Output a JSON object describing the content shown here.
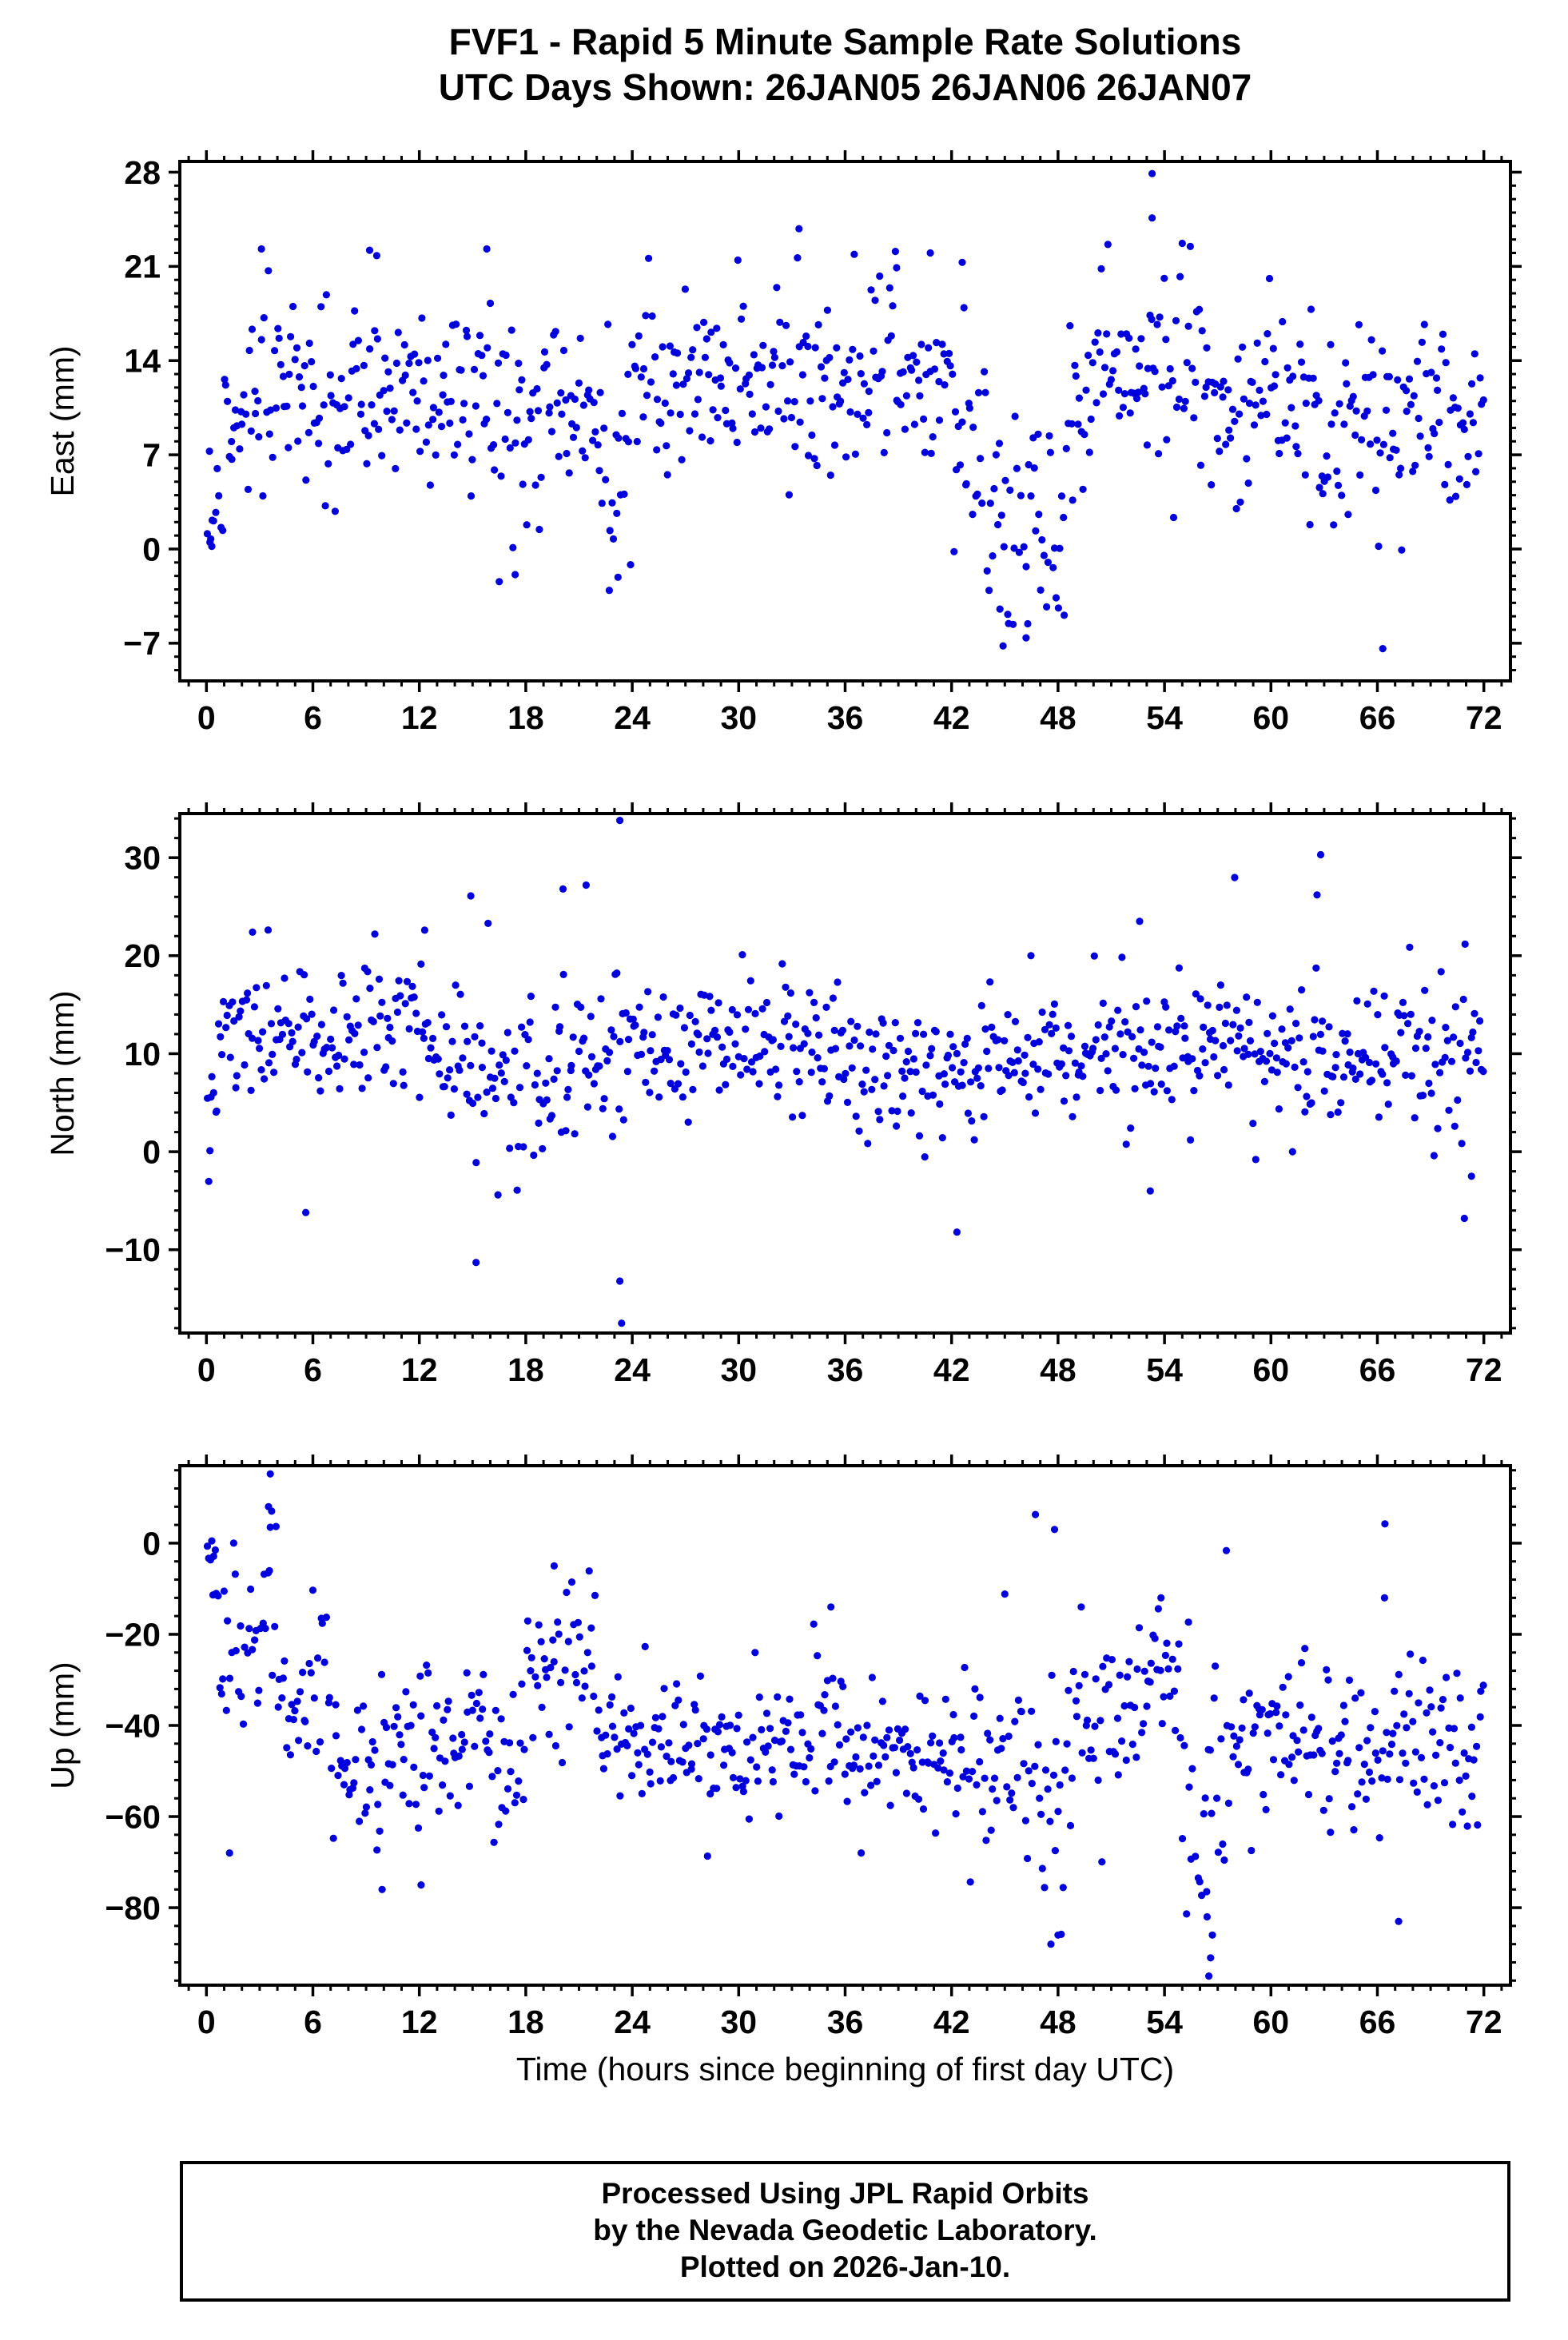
{
  "page": {
    "title_line1": "FVF1 - Rapid 5 Minute Sample Rate Solutions",
    "title_line2": "UTC Days Shown:  26JAN05 26JAN06 26JAN07"
  },
  "style": {
    "point_color": "#0000dd",
    "axis_color": "#000000"
  },
  "footer": {
    "lines": [
      "Processed Using JPL Rapid Orbits",
      "by the Nevada Geodetic Laboratory.",
      "Plotted on 2026-Jan-10."
    ]
  },
  "chart_data": [
    {
      "type": "scatter",
      "title": "",
      "ylabel": "East (mm)",
      "xlabel": "",
      "xlim": [
        -1.5,
        73.5
      ],
      "ylim": [
        -9.8,
        28.8
      ],
      "xticks": [
        0,
        6,
        12,
        18,
        24,
        30,
        36,
        42,
        48,
        54,
        60,
        66,
        72
      ],
      "yticks": [
        -7,
        0,
        7,
        14,
        21,
        28
      ],
      "x_minor_step": 1,
      "y_minor_step": 1,
      "n_points": 760,
      "seed": 11,
      "segments": [
        [
          0,
          1,
          4,
          3
        ],
        [
          1,
          16,
          11.5,
          3.4
        ],
        [
          16,
          19,
          8,
          4.2
        ],
        [
          19,
          22,
          10.5,
          3
        ],
        [
          22,
          24,
          7.5,
          4.5
        ],
        [
          24,
          33,
          12,
          3.3
        ],
        [
          33,
          36,
          11.5,
          4
        ],
        [
          36,
          42,
          12,
          3.3
        ],
        [
          42,
          44,
          8.5,
          4
        ],
        [
          44,
          48.5,
          2,
          4.2
        ],
        [
          48.5,
          50,
          11,
          3.5
        ],
        [
          50,
          56,
          13.5,
          3.8
        ],
        [
          56,
          63,
          10.5,
          3.2
        ],
        [
          63,
          68,
          9,
          3.4
        ],
        [
          68,
          72,
          9.5,
          3.2
        ]
      ],
      "outliers": [
        [
          53.3,
          27.9
        ],
        [
          53.3,
          24.6
        ],
        [
          33.4,
          23.8
        ],
        [
          3.1,
          22.3
        ],
        [
          9.2,
          22.2
        ],
        [
          9.6,
          21.8
        ],
        [
          15.8,
          22.3
        ],
        [
          40.8,
          22.0
        ],
        [
          42.6,
          21.3
        ],
        [
          38.9,
          20.9
        ],
        [
          66.3,
          -7.4
        ],
        [
          44.9,
          -7.2
        ],
        [
          46.2,
          -6.6
        ],
        [
          17.4,
          -1.9
        ],
        [
          23.2,
          -2.1
        ],
        [
          0.3,
          0.2
        ],
        [
          0.2,
          0.5
        ]
      ]
    },
    {
      "type": "scatter",
      "title": "",
      "ylabel": "North (mm)",
      "xlabel": "",
      "xlim": [
        -1.5,
        73.5
      ],
      "ylim": [
        -18.5,
        34.5
      ],
      "xticks": [
        0,
        6,
        12,
        18,
        24,
        30,
        36,
        42,
        48,
        54,
        60,
        66,
        72
      ],
      "yticks": [
        -10,
        0,
        10,
        20,
        30
      ],
      "x_minor_step": 1,
      "y_minor_step": 2,
      "n_points": 760,
      "seed": 22,
      "segments": [
        [
          0,
          0.6,
          5,
          4
        ],
        [
          0.6,
          13,
          12,
          3.3
        ],
        [
          13,
          16,
          10,
          4.5
        ],
        [
          16,
          19,
          7,
          3.8
        ],
        [
          19,
          23,
          8,
          4.5
        ],
        [
          23,
          24,
          9,
          8
        ],
        [
          24,
          31,
          10.5,
          3.2
        ],
        [
          31,
          36,
          11.5,
          3.2
        ],
        [
          36,
          44,
          8,
          3.4
        ],
        [
          44,
          50,
          9.5,
          3.5
        ],
        [
          50,
          58,
          10.5,
          3.6
        ],
        [
          58,
          66,
          10,
          3.6
        ],
        [
          66,
          72,
          11,
          3.8
        ]
      ],
      "outliers": [
        [
          23.3,
          33.8
        ],
        [
          23.4,
          -17.5
        ],
        [
          23.3,
          -13.2
        ],
        [
          15.2,
          -11.3
        ],
        [
          20.1,
          26.8
        ],
        [
          21.4,
          27.2
        ],
        [
          14.9,
          26.1
        ],
        [
          62.8,
          30.3
        ],
        [
          62.6,
          26.2
        ],
        [
          5.6,
          -6.2
        ],
        [
          42.3,
          -8.2
        ],
        [
          70.9,
          -6.8
        ],
        [
          71.3,
          -2.5
        ],
        [
          52.6,
          23.5
        ],
        [
          12.3,
          22.6
        ],
        [
          2.6,
          22.4
        ],
        [
          0.2,
          0.1
        ],
        [
          53.2,
          -4.0
        ]
      ]
    },
    {
      "type": "scatter",
      "title": "",
      "ylabel": "Up (mm)",
      "xlabel": "Time (hours since beginning of first day UTC)",
      "xlim": [
        -1.5,
        73.5
      ],
      "ylim": [
        -97,
        17
      ],
      "xticks": [
        0,
        6,
        12,
        18,
        24,
        30,
        36,
        42,
        48,
        54,
        60,
        66,
        72
      ],
      "yticks": [
        -80,
        -60,
        -40,
        -20,
        0
      ],
      "x_minor_step": 1,
      "y_minor_step": 4,
      "n_points": 740,
      "seed": 33,
      "segments": [
        [
          0,
          0.7,
          -5,
          5
        ],
        [
          0.7,
          3,
          -24,
          8
        ],
        [
          3,
          4,
          -18,
          12
        ],
        [
          4,
          7,
          -33,
          8
        ],
        [
          7,
          12,
          -48,
          8
        ],
        [
          12,
          18,
          -44,
          10
        ],
        [
          18,
          22,
          -26,
          9
        ],
        [
          22,
          27,
          -43,
          7
        ],
        [
          27,
          34,
          -45,
          7
        ],
        [
          34,
          36,
          -40,
          10
        ],
        [
          36,
          42,
          -47,
          7
        ],
        [
          42,
          46,
          -46,
          8
        ],
        [
          46,
          48.5,
          -52,
          14
        ],
        [
          48.5,
          53,
          -38,
          8
        ],
        [
          53,
          55,
          -32,
          9
        ],
        [
          55,
          58,
          -58,
          15
        ],
        [
          58,
          62,
          -41,
          9
        ],
        [
          62,
          66,
          -46,
          7
        ],
        [
          66,
          70,
          -42,
          9
        ],
        [
          70,
          72,
          -45,
          8
        ]
      ],
      "outliers": [
        [
          3.6,
          15.2
        ],
        [
          3.5,
          8.0
        ],
        [
          3.6,
          3.5
        ],
        [
          0.3,
          0.5
        ],
        [
          0.5,
          -1.5
        ],
        [
          47.8,
          3.0
        ],
        [
          47.6,
          -88
        ],
        [
          56.5,
          -95
        ],
        [
          56.6,
          -91
        ],
        [
          56.7,
          -86
        ],
        [
          56.4,
          -82
        ],
        [
          67.2,
          -83
        ],
        [
          48.0,
          -86
        ],
        [
          1.3,
          -68
        ],
        [
          66.4,
          -12
        ],
        [
          53.8,
          -12
        ],
        [
          19.6,
          -5
        ],
        [
          35.2,
          -14
        ],
        [
          9.9,
          -76
        ],
        [
          12.1,
          -75
        ]
      ]
    }
  ]
}
